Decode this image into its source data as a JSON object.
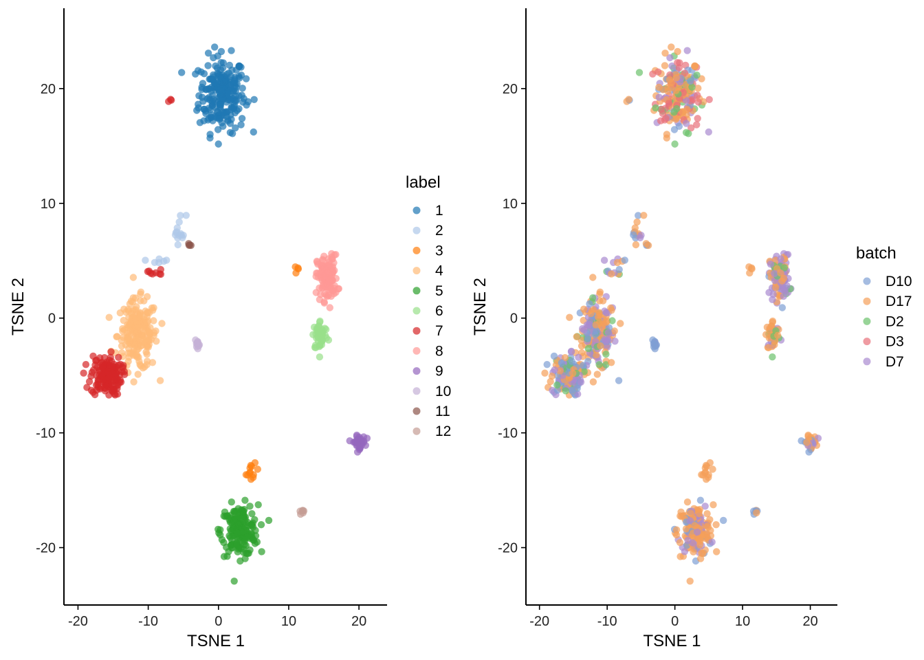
{
  "chart_data": [
    {
      "type": "scatter",
      "xlabel": "TSNE 1",
      "ylabel": "TSNE 2",
      "xlim": [
        -22,
        24
      ],
      "ylim": [
        -25,
        27
      ],
      "xticks": [
        -20,
        -10,
        0,
        10,
        20
      ],
      "yticks": [
        -20,
        -10,
        0,
        10,
        20
      ],
      "xtick_labels": [
        "-20",
        "-10",
        "0",
        "10",
        "20"
      ],
      "ytick_labels": [
        "-20",
        "-10",
        "0",
        "10",
        "20"
      ],
      "grid": false,
      "legend": {
        "title": "label",
        "placement": "right"
      },
      "series": [
        {
          "name": "1",
          "color": "#1f77b4",
          "clusters": [
            {
              "center": [
                0.5,
                19.5
              ],
              "spread": [
                3.0,
                3.0
              ],
              "count": 230
            }
          ]
        },
        {
          "name": "2",
          "color": "#aec7e8",
          "clusters": [
            {
              "center": [
                -5.5,
                7.8
              ],
              "spread": [
                0.8,
                1.2
              ],
              "count": 14
            },
            {
              "center": [
                -8.5,
                5.0
              ],
              "spread": [
                1.2,
                0.3
              ],
              "count": 6
            }
          ]
        },
        {
          "name": "3",
          "color": "#ff7f0e",
          "clusters": [
            {
              "center": [
                4.8,
                -13.5
              ],
              "spread": [
                0.8,
                0.7
              ],
              "count": 12
            },
            {
              "center": [
                11.2,
                4.3
              ],
              "spread": [
                0.3,
                0.2
              ],
              "count": 4
            }
          ]
        },
        {
          "name": "4",
          "color": "#ffbb78",
          "clusters": [
            {
              "center": [
                -11.5,
                -1.5
              ],
              "spread": [
                2.6,
                2.8
              ],
              "count": 200
            }
          ]
        },
        {
          "name": "5",
          "color": "#2ca02c",
          "clusters": [
            {
              "center": [
                3.0,
                -18.5
              ],
              "spread": [
                2.4,
                2.0
              ],
              "count": 170
            }
          ]
        },
        {
          "name": "6",
          "color": "#98df8a",
          "clusters": [
            {
              "center": [
                14.5,
                -1.5
              ],
              "spread": [
                1.0,
                1.2
              ],
              "count": 45
            }
          ]
        },
        {
          "name": "7",
          "color": "#d62728",
          "clusters": [
            {
              "center": [
                -16.0,
                -5.0
              ],
              "spread": [
                2.0,
                1.6
              ],
              "count": 140
            },
            {
              "center": [
                -9.0,
                4.0
              ],
              "spread": [
                1.0,
                0.3
              ],
              "count": 8
            },
            {
              "center": [
                -7.0,
                19.0
              ],
              "spread": [
                0.4,
                0.1
              ],
              "count": 3
            }
          ]
        },
        {
          "name": "8",
          "color": "#ff9896",
          "clusters": [
            {
              "center": [
                15.5,
                3.5
              ],
              "spread": [
                1.3,
                1.8
              ],
              "count": 130
            }
          ]
        },
        {
          "name": "9",
          "color": "#9467bd",
          "clusters": [
            {
              "center": [
                20.0,
                -10.8
              ],
              "spread": [
                0.8,
                0.5
              ],
              "count": 45
            }
          ]
        },
        {
          "name": "10",
          "color": "#c5b0d5",
          "clusters": [
            {
              "center": [
                -3.0,
                -2.4
              ],
              "spread": [
                0.3,
                0.4
              ],
              "count": 12
            }
          ]
        },
        {
          "name": "11",
          "color": "#8c564b",
          "clusters": [
            {
              "center": [
                -4.2,
                6.4
              ],
              "spread": [
                0.3,
                0.1
              ],
              "count": 4
            }
          ]
        },
        {
          "name": "12",
          "color": "#c49c94",
          "clusters": [
            {
              "center": [
                11.8,
                -16.8
              ],
              "spread": [
                0.4,
                0.2
              ],
              "count": 6
            }
          ]
        }
      ]
    },
    {
      "type": "scatter",
      "xlabel": "TSNE 1",
      "ylabel": "TSNE 2",
      "xlim": [
        -22,
        24
      ],
      "ylim": [
        -25,
        27
      ],
      "xticks": [
        -20,
        -10,
        0,
        10,
        20
      ],
      "yticks": [
        -20,
        -10,
        0,
        10,
        20
      ],
      "xtick_labels": [
        "-20",
        "-10",
        "0",
        "10",
        "20"
      ],
      "ytick_labels": [
        "-20",
        "-10",
        "0",
        "10",
        "20"
      ],
      "grid": false,
      "legend": {
        "title": "batch",
        "placement": "right"
      },
      "series": [
        {
          "name": "D10",
          "color": "#7f9fd4"
        },
        {
          "name": "D17",
          "color": "#f5a05a"
        },
        {
          "name": "D2",
          "color": "#6cc26c"
        },
        {
          "name": "D3",
          "color": "#e8707a"
        },
        {
          "name": "D7",
          "color": "#a98ad0"
        }
      ],
      "batch_mix": {
        "1": {
          "D17": 0.4,
          "D3": 0.25,
          "D2": 0.15,
          "D7": 0.1,
          "D10": 0.1
        },
        "2": {
          "D17": 0.5,
          "D7": 0.3,
          "D10": 0.2
        },
        "3": {
          "D17": 1.0
        },
        "4": {
          "D17": 0.45,
          "D7": 0.25,
          "D2": 0.15,
          "D10": 0.15
        },
        "5": {
          "D17": 0.7,
          "D7": 0.2,
          "D10": 0.1
        },
        "6": {
          "D17": 0.8,
          "D7": 0.1,
          "D2": 0.1
        },
        "7": {
          "D17": 0.35,
          "D10": 0.25,
          "D2": 0.15,
          "D7": 0.25
        },
        "8": {
          "D7": 0.45,
          "D17": 0.4,
          "D2": 0.1,
          "D10": 0.05
        },
        "9": {
          "D17": 0.5,
          "D10": 0.3,
          "D7": 0.2
        },
        "10": {
          "D10": 0.6,
          "D2": 0.2,
          "D7": 0.2
        },
        "11": {
          "D17": 0.6,
          "D10": 0.4
        },
        "12": {
          "D17": 0.6,
          "D10": 0.4
        }
      }
    }
  ]
}
